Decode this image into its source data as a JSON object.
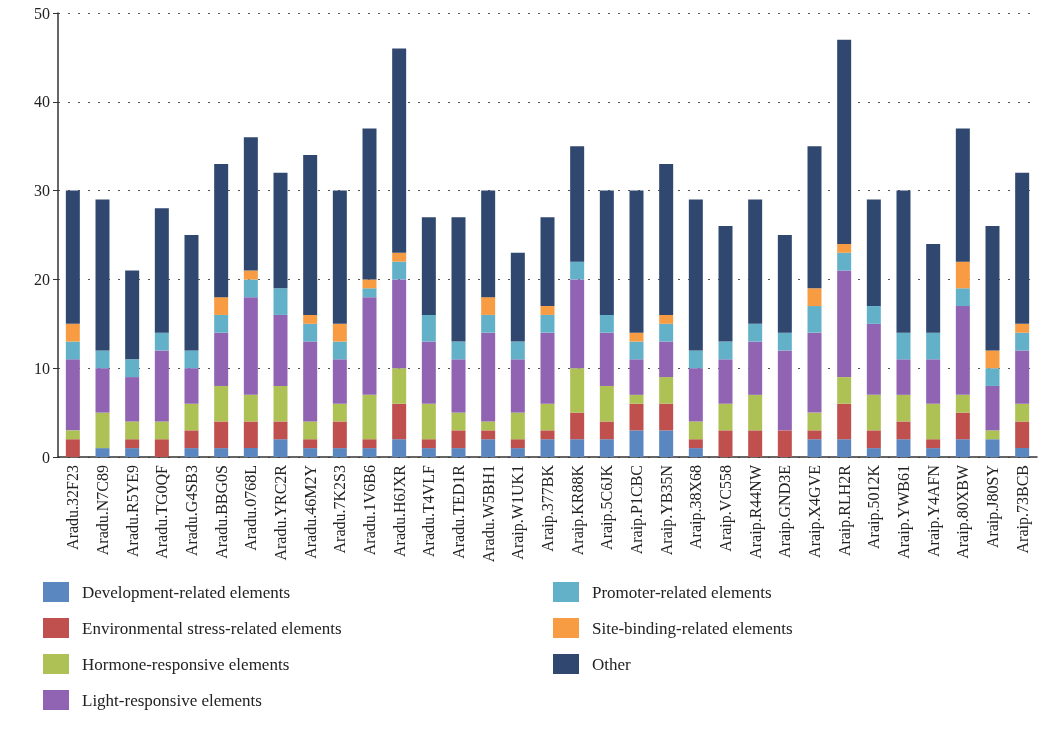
{
  "chart_data": {
    "type": "bar",
    "stacked": true,
    "categories": [
      "Aradu.32F23",
      "Aradu.N7C89",
      "Aradu.R5YE9",
      "Aradu.TG0QF",
      "Aradu.G4SB3",
      "Aradu.BBG0S",
      "Aradu.0768L",
      "Aradu.YRC2R",
      "Aradu.46M2Y",
      "Aradu.7K2S3",
      "Aradu.1V6B6",
      "Aradu.H6JXR",
      "Aradu.T4VLF",
      "Aradu.TED1R",
      "Aradu.W5BH1",
      "Araip.W1UK1",
      "Araip.377BK",
      "Araip.KR88K",
      "Araip.5C6JK",
      "Araip.P1CBC",
      "Araip.YB35N",
      "Araip.38X68",
      "Araip.VC558",
      "Araip.R44NW",
      "Araip.GND3E",
      "Araip.X4GVE",
      "Araip.RLH2R",
      "Araip.5012K",
      "Araip.YWB61",
      "Araip.Y4AFN",
      "Araip.80XBW",
      "Araip.J80SY",
      "Araip.73BCB"
    ],
    "series": [
      {
        "name": "Development-related elements",
        "color": "#5b87c1",
        "values": [
          0,
          1,
          1,
          0,
          1,
          1,
          1,
          2,
          1,
          1,
          1,
          2,
          1,
          1,
          2,
          1,
          2,
          2,
          2,
          3,
          3,
          1,
          0,
          0,
          0,
          2,
          2,
          1,
          2,
          1,
          2,
          2,
          1
        ]
      },
      {
        "name": "Environmental stress-related elements",
        "color": "#c0504d",
        "values": [
          2,
          0,
          1,
          2,
          2,
          3,
          3,
          2,
          1,
          3,
          1,
          4,
          1,
          2,
          1,
          1,
          1,
          3,
          2,
          3,
          3,
          1,
          3,
          3,
          3,
          1,
          4,
          2,
          2,
          1,
          3,
          0,
          3
        ]
      },
      {
        "name": "Hormone-responsive elements",
        "color": "#adc155",
        "values": [
          1,
          4,
          2,
          2,
          3,
          4,
          3,
          4,
          2,
          2,
          5,
          4,
          4,
          2,
          1,
          3,
          3,
          5,
          4,
          1,
          3,
          2,
          3,
          4,
          0,
          2,
          3,
          4,
          3,
          4,
          2,
          1,
          2
        ]
      },
      {
        "name": "Light-responsive elements",
        "color": "#9063b3",
        "values": [
          8,
          5,
          5,
          8,
          4,
          6,
          11,
          8,
          9,
          5,
          11,
          10,
          7,
          6,
          10,
          6,
          8,
          10,
          6,
          4,
          4,
          6,
          5,
          6,
          9,
          9,
          12,
          8,
          4,
          5,
          10,
          5,
          6
        ]
      },
      {
        "name": "Promoter-related elements",
        "color": "#63b1c9",
        "values": [
          2,
          2,
          2,
          2,
          2,
          2,
          2,
          3,
          2,
          2,
          1,
          2,
          3,
          2,
          2,
          2,
          2,
          2,
          2,
          2,
          2,
          2,
          2,
          2,
          2,
          3,
          2,
          2,
          3,
          3,
          2,
          2,
          2
        ]
      },
      {
        "name": "Site-binding-related elements",
        "color": "#f89c43",
        "values": [
          2,
          0,
          0,
          0,
          0,
          2,
          1,
          0,
          1,
          2,
          1,
          1,
          0,
          0,
          2,
          0,
          1,
          0,
          0,
          1,
          1,
          0,
          0,
          0,
          0,
          2,
          1,
          0,
          0,
          0,
          3,
          2,
          1
        ]
      },
      {
        "name": "Other",
        "color": "#30486f",
        "values": [
          15,
          17,
          10,
          14,
          13,
          15,
          15,
          13,
          18,
          15,
          17,
          23,
          11,
          14,
          12,
          10,
          10,
          13,
          14,
          16,
          17,
          17,
          13,
          14,
          11,
          16,
          23,
          12,
          16,
          10,
          15,
          14,
          17
        ]
      }
    ],
    "ylim": [
      0,
      50
    ],
    "yticks": [
      0,
      10,
      20,
      30,
      40,
      50
    ],
    "grid": "y",
    "legend": "bottom"
  }
}
